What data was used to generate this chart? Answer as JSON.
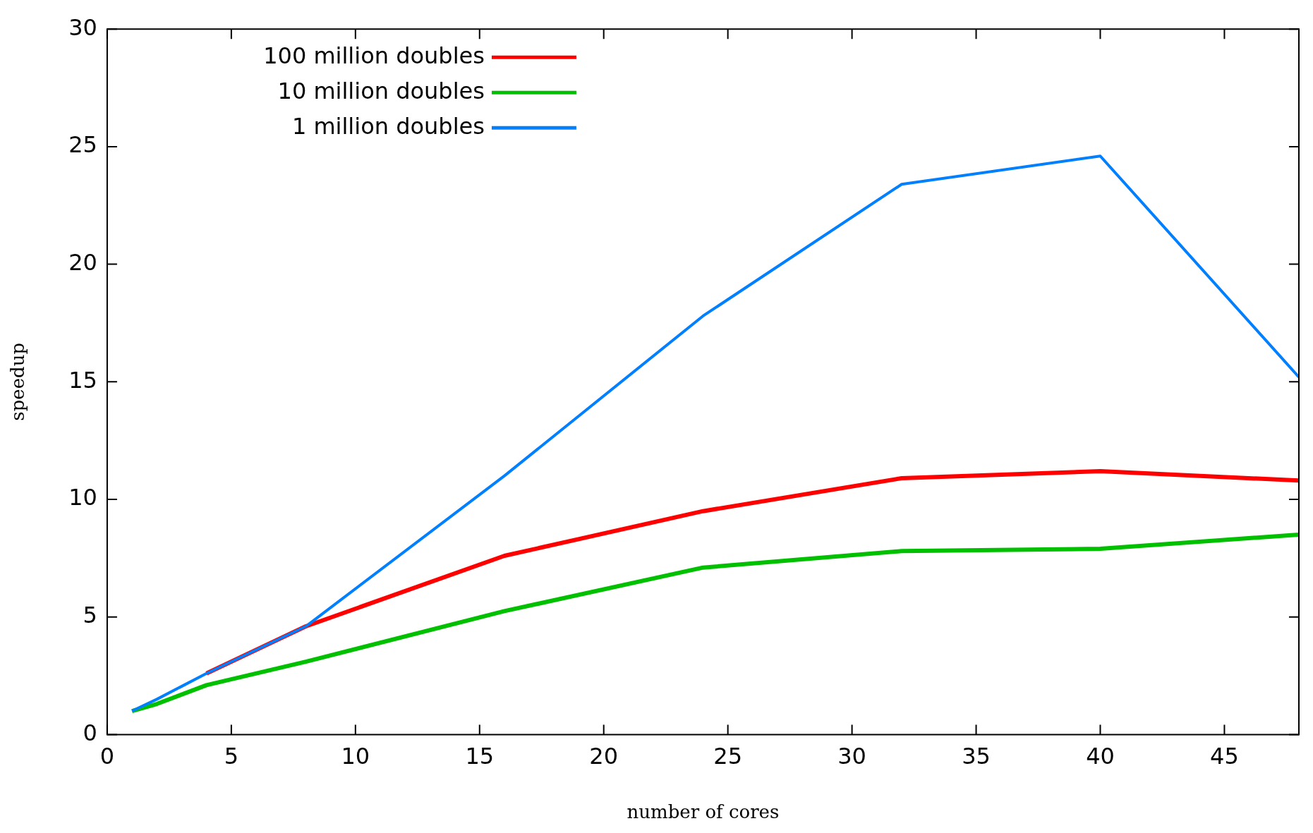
{
  "chart_data": {
    "type": "line",
    "xlabel": "number of cores",
    "ylabel": "speedup",
    "x": [
      1,
      2,
      4,
      8,
      16,
      24,
      32,
      40,
      48
    ],
    "series": [
      {
        "name": "100 million doubles",
        "color": "#ff0000",
        "values": [
          null,
          null,
          2.6,
          4.6,
          7.6,
          9.5,
          10.9,
          11.2,
          10.8
        ]
      },
      {
        "name": "10 million doubles",
        "color": "#00c000",
        "values": [
          1,
          1.3,
          2.1,
          3.1,
          5.25,
          7.1,
          7.8,
          7.9,
          8.5
        ]
      },
      {
        "name": "1 million doubles",
        "color": "#0080ff",
        "values": [
          1,
          1.5,
          2.6,
          4.6,
          11.0,
          17.8,
          23.4,
          24.6,
          15.2
        ]
      }
    ],
    "xlim": [
      0,
      48
    ],
    "xticks": [
      0,
      5,
      10,
      15,
      20,
      25,
      30,
      35,
      40,
      45
    ],
    "ylim": [
      0,
      30
    ],
    "yticks": [
      0,
      5,
      10,
      15,
      20,
      25,
      30
    ],
    "grid": false,
    "legend": "top left",
    "marker": "none",
    "line_style": "solid"
  }
}
